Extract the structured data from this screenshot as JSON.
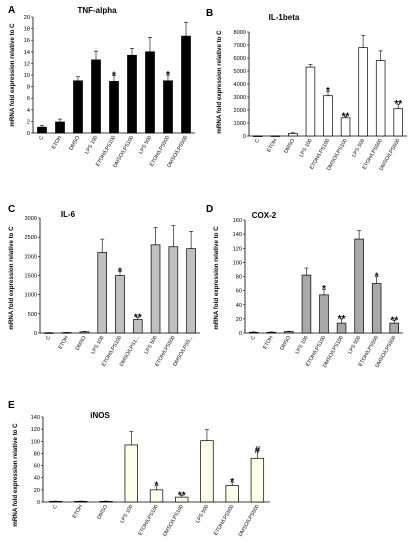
{
  "chart_data": [
    {
      "panel": "A",
      "title": "TNF-alpha",
      "type": "bar",
      "ylabel": "mRNA fold expression relative to C",
      "ylim": [
        0,
        20
      ],
      "yticks": [
        0,
        2,
        4,
        6,
        8,
        10,
        12,
        14,
        16,
        18,
        20
      ],
      "categories": [
        "C",
        "ETOH",
        "DMSO",
        "LPS 100",
        "ETOH/LPS100",
        "DMSO/LPS100",
        "LPS 500",
        "ETOH/LPS500",
        "DMSO/LPS500"
      ],
      "values": [
        1.0,
        1.9,
        9.0,
        12.6,
        8.9,
        13.4,
        14.0,
        9.0,
        16.7
      ],
      "errors": [
        0.3,
        0.5,
        0.7,
        1.5,
        1.0,
        1.2,
        2.5,
        1.0,
        2.4
      ],
      "annotations": [
        "",
        "",
        "",
        "",
        "*",
        "",
        "",
        "*",
        ""
      ],
      "bar_color": "#000000"
    },
    {
      "panel": "B",
      "title": "IL-1beta",
      "type": "bar",
      "ylabel": "mRNA fold expression relative to C",
      "ylim": [
        0,
        8000
      ],
      "yticks": [
        0,
        1000,
        2000,
        3000,
        4000,
        5000,
        6000,
        7000,
        8000
      ],
      "categories": [
        "C",
        "ETOH",
        "DMSO",
        "LPS 100",
        "ETOH/LPS100",
        "DMSO/LPS100",
        "LPS 500",
        "ETOH/LPS500",
        "DMSO/LPS500"
      ],
      "values": [
        5,
        10,
        200,
        5300,
        3100,
        1400,
        6800,
        5800,
        2100
      ],
      "errors": [
        5,
        5,
        50,
        200,
        350,
        100,
        950,
        750,
        350
      ],
      "annotations": [
        "",
        "",
        "",
        "",
        "*",
        "**",
        "",
        "",
        "**"
      ],
      "bar_color": "#ffffff"
    },
    {
      "panel": "C",
      "title": "IL-6",
      "type": "bar",
      "ylabel": "mRNA fold expression relative to C",
      "ylim": [
        0,
        3000
      ],
      "yticks": [
        0,
        500,
        1000,
        1500,
        2000,
        2500,
        3000
      ],
      "categories": [
        "C",
        "ETOH",
        "DMSO",
        "LPS 100",
        "ETOH/LPS100",
        "DMSO/LPS1...",
        "LPS 500",
        "ETOH/LPS500",
        "DMSO/LPS5..."
      ],
      "values": [
        5,
        10,
        30,
        2100,
        1500,
        350,
        2300,
        2250,
        2200
      ],
      "errors": [
        5,
        5,
        10,
        350,
        100,
        50,
        450,
        550,
        450
      ],
      "annotations": [
        "",
        "",
        "",
        "",
        "*",
        "**",
        "",
        "",
        ""
      ],
      "bar_color": "#c0c0c0"
    },
    {
      "panel": "D",
      "title": "COX-2",
      "type": "bar",
      "ylabel": "mRNA fold expression relative to C",
      "ylim": [
        0,
        160
      ],
      "yticks": [
        0,
        20,
        40,
        60,
        80,
        100,
        120,
        140,
        160
      ],
      "categories": [
        "C",
        "ETOH",
        "DMSO",
        "LPS 100",
        "ETOH/LPS100",
        "DMSO/LPS100",
        "LPS 500",
        "ETOH/LPS500",
        "DMSO/LPS500"
      ],
      "values": [
        1,
        1,
        2,
        82,
        54,
        14,
        133,
        70,
        14
      ],
      "errors": [
        0.5,
        0.5,
        0.5,
        10,
        8,
        6,
        12,
        10,
        4
      ],
      "annotations": [
        "",
        "",
        "",
        "",
        "*",
        "**",
        "",
        "*",
        "**"
      ],
      "bar_color": "#a9a9a9"
    },
    {
      "panel": "E",
      "title": "iNOS",
      "type": "bar",
      "ylabel": "mRNA fold expression relative to C",
      "ylim": [
        0,
        140
      ],
      "yticks": [
        0,
        20,
        40,
        60,
        80,
        100,
        120,
        140
      ],
      "categories": [
        "C",
        "ETOH",
        "DMSO",
        "LPS 100",
        "ETOH/LPS100",
        "DMSO/LPS100",
        "LPS 500",
        "ETOH/LPS500",
        "DMSO/LPS500"
      ],
      "values": [
        1,
        1,
        1,
        94,
        20,
        8,
        101,
        27,
        72
      ],
      "errors": [
        0.5,
        0.5,
        0.5,
        22,
        7,
        3,
        18,
        6,
        14
      ],
      "annotations": [
        "",
        "",
        "",
        "",
        "*",
        "**",
        "",
        "*",
        "#"
      ],
      "bar_color": "#fdfde8"
    }
  ]
}
